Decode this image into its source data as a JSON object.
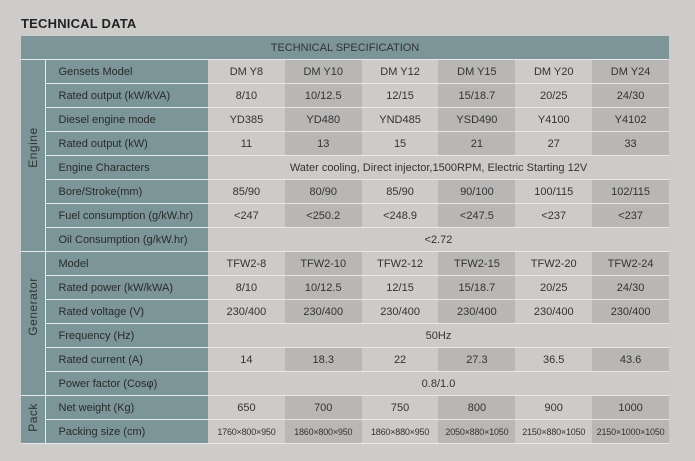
{
  "title": "TECHNICAL DATA",
  "table_header": "TECHNICAL SPECIFICATION",
  "sections": [
    {
      "name": "Engine",
      "rows": [
        {
          "label": "Gensets Model",
          "values": [
            "DM Y8",
            "DM Y10",
            "DM Y12",
            "DM Y15",
            "DM Y20",
            "DM Y24"
          ]
        },
        {
          "label": "Rated output (kW/kVA)",
          "values": [
            "8/10",
            "10/12.5",
            "12/15",
            "15/18.7",
            "20/25",
            "24/30"
          ]
        },
        {
          "label": "Diesel engine mode",
          "values": [
            "YD385",
            "YD480",
            "YND485",
            "YSD490",
            "Y4100",
            "Y4102"
          ]
        },
        {
          "label": "Rated output (kW)",
          "values": [
            "11",
            "13",
            "15",
            "21",
            "27",
            "33"
          ]
        },
        {
          "label": "Engine Characters",
          "span": "Water cooling, Direct injector,1500RPM, Electric Starting 12V"
        },
        {
          "label": "Bore/Stroke(mm)",
          "values": [
            "85/90",
            "80/90",
            "85/90",
            "90/100",
            "100/115",
            "102/115"
          ]
        },
        {
          "label": "Fuel consumption (g/kW.hr)",
          "values": [
            "<247",
            "<250.2",
            "<248.9",
            "<247.5",
            "<237",
            "<237"
          ]
        },
        {
          "label": "Oil Consumption (g/kW.hr)",
          "span": "<2.72"
        }
      ]
    },
    {
      "name": "Generator",
      "rows": [
        {
          "label": "Model",
          "values": [
            "TFW2-8",
            "TFW2-10",
            "TFW2-12",
            "TFW2-15",
            "TFW2-20",
            "TFW2-24"
          ]
        },
        {
          "label": "Rated power (kW/kWA)",
          "values": [
            "8/10",
            "10/12.5",
            "12/15",
            "15/18.7",
            "20/25",
            "24/30"
          ]
        },
        {
          "label": "Rated voltage (V)",
          "values": [
            "230/400",
            "230/400",
            "230/400",
            "230/400",
            "230/400",
            "230/400"
          ]
        },
        {
          "label": "Frequency (Hz)",
          "span": "50Hz"
        },
        {
          "label": "Rated current (A)",
          "values": [
            "14",
            "18.3",
            "22",
            "27.3",
            "36.5",
            "43.6"
          ]
        },
        {
          "label": "Power factor (Cosφ)",
          "span": "0.8/1.0"
        }
      ]
    },
    {
      "name": "Pack",
      "rows": [
        {
          "label": "Net weight (Kg)",
          "values": [
            "650",
            "700",
            "750",
            "800",
            "900",
            "1000"
          ]
        },
        {
          "label": "Packing size  (cm)",
          "small": true,
          "values": [
            "1760×800×950",
            "1860×800×950",
            "1860×880×950",
            "2050×880×1050",
            "2150×880×1050",
            "2150×1000×1050"
          ]
        }
      ]
    }
  ]
}
